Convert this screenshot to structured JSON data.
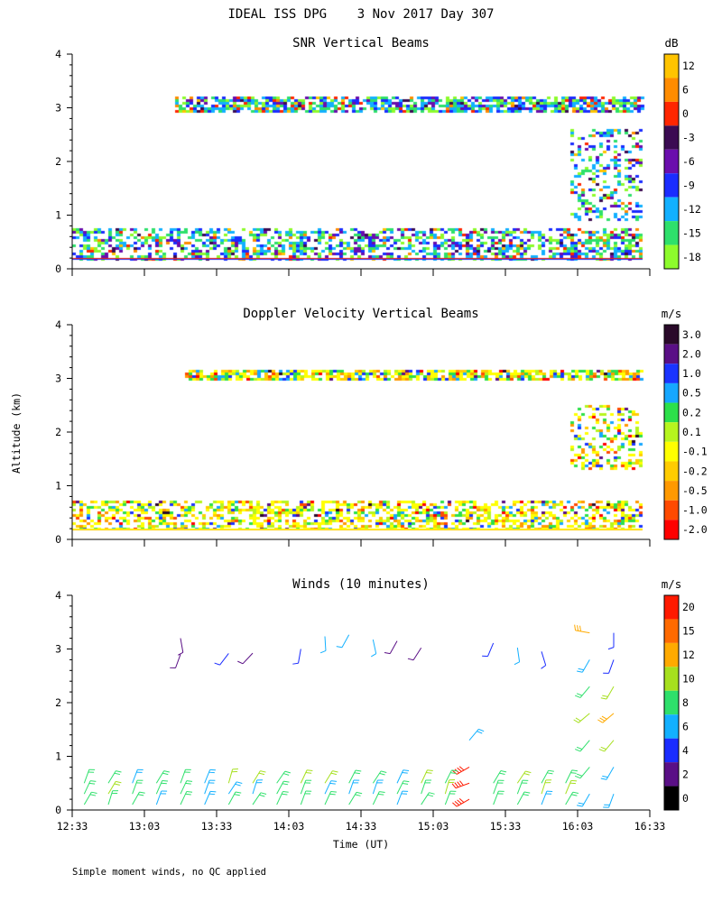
{
  "figure": {
    "title": "IDEAL ISS DPG    3 Nov 2017 Day 307",
    "shared_ylabel": "Altitude (km)",
    "xlabel": "Time (UT)",
    "footnote": "Simple moment winds, no QC applied"
  },
  "time_axis": {
    "range_min": [
      753,
      993
    ],
    "tick_minutes": [
      753,
      783,
      813,
      843,
      873,
      903,
      933,
      963,
      993
    ],
    "tick_labels": [
      "12:33",
      "13:03",
      "13:33",
      "14:03",
      "14:33",
      "15:03",
      "15:33",
      "16:03",
      "16:33"
    ]
  },
  "chart_data": [
    {
      "id": "snr",
      "type": "heatmap",
      "title": "SNR Vertical Beams",
      "xlabel": "Time (UT)",
      "ylabel": "Altitude (km)",
      "xlim_min": [
        753,
        993
      ],
      "ylim": [
        0,
        4
      ],
      "yticks": [
        0,
        1,
        2,
        3,
        4
      ],
      "colorbar": {
        "unit": "dB",
        "labels": [
          "12",
          "6",
          "0",
          "-3",
          "-6",
          "-9",
          "-12",
          "-15",
          "-18"
        ],
        "colors": [
          "#ffc400",
          "#ff8c00",
          "#ff2600",
          "#3b0b52",
          "#6a0dad",
          "#1a2cff",
          "#12b0ff",
          "#2ee06b",
          "#8dfb2c"
        ]
      },
      "data_regions": [
        {
          "feature": "surface layer",
          "time_min": [
            753,
            990
          ],
          "alt_km": [
            0.18,
            0.75
          ],
          "level": "-15 to 12"
        },
        {
          "feature": "elevated layer",
          "time_min": [
            796,
            990
          ],
          "alt_km": [
            2.9,
            3.2
          ],
          "level": "-18 to -6"
        },
        {
          "feature": "late afternoon returns",
          "time_min": [
            960,
            990
          ],
          "alt_km": [
            0.9,
            2.6
          ],
          "level": "-15 to -9"
        }
      ]
    },
    {
      "id": "velocity",
      "type": "heatmap",
      "title": "Doppler Velocity Vertical Beams",
      "xlabel": "Time (UT)",
      "ylabel": "Altitude (km)",
      "xlim_min": [
        753,
        993
      ],
      "ylim": [
        0,
        4
      ],
      "yticks": [
        0,
        1,
        2,
        3,
        4
      ],
      "colorbar": {
        "unit": "m/s",
        "labels": [
          "3.0",
          "2.0",
          "1.0",
          "0.5",
          "0.2",
          "0.1",
          "-0.1",
          "-0.2",
          "-0.5",
          "-1.0",
          "-2.0"
        ],
        "colors": [
          "#2a0a2a",
          "#5a0f86",
          "#1a34ff",
          "#16a7ff",
          "#2ce04a",
          "#b6f51e",
          "#ffff00",
          "#ffcc00",
          "#ff9900",
          "#ff4a00",
          "#ff0000"
        ]
      },
      "data_regions": [
        {
          "feature": "surface layer",
          "time_min": [
            753,
            990
          ],
          "alt_km": [
            0.18,
            0.72
          ],
          "level": "-0.2 to 0.1"
        },
        {
          "feature": "elevated layer",
          "time_min": [
            800,
            990
          ],
          "alt_km": [
            2.95,
            3.15
          ],
          "level": "-1.0 to 0.2"
        },
        {
          "feature": "late afternoon returns",
          "time_min": [
            960,
            990
          ],
          "alt_km": [
            1.3,
            2.5
          ],
          "level": "0.2 to 1.0"
        }
      ]
    },
    {
      "id": "winds",
      "type": "wind_barbs",
      "title": "Winds (10 minutes)",
      "xlabel": "Time (UT)",
      "ylabel": "Altitude (km)",
      "xlim_min": [
        753,
        993
      ],
      "ylim": [
        0,
        4
      ],
      "yticks": [
        0,
        1,
        2,
        3,
        4
      ],
      "colorbar": {
        "unit": "m/s",
        "labels": [
          "20",
          "15",
          "12",
          "10",
          "8",
          "6",
          "4",
          "2",
          "0"
        ],
        "colors": [
          "#ff1a00",
          "#ff6a00",
          "#ffaa00",
          "#a6e01e",
          "#2ee06b",
          "#12b0ff",
          "#1a2cff",
          "#5a0f86",
          "#000000"
        ]
      },
      "profile_times_min": [
        758,
        768,
        778,
        788,
        798,
        808,
        818,
        828,
        838,
        848,
        858,
        868,
        878,
        888,
        898,
        908,
        918,
        928,
        938,
        948,
        958,
        968,
        978
      ],
      "samples": [
        {
          "t": 758,
          "alt": [
            0.1,
            0.3,
            0.5
          ],
          "speed": [
            10,
            9,
            11
          ],
          "dir_deg": [
            30,
            25,
            20
          ]
        },
        {
          "t": 798,
          "alt": [
            0.1,
            0.3,
            0.5,
            2.9,
            3.2
          ],
          "speed": [
            9,
            10,
            11,
            3,
            2
          ],
          "dir_deg": [
            25,
            25,
            20,
            200,
            170
          ]
        },
        {
          "t": 848,
          "alt": [
            0.1,
            0.3,
            0.5,
            3.0
          ],
          "speed": [
            10,
            11,
            12,
            5
          ],
          "dir_deg": [
            20,
            20,
            25,
            190
          ]
        },
        {
          "t": 918,
          "alt": [
            0.2,
            0.5,
            0.8,
            1.3
          ],
          "speed": [
            20,
            20,
            19,
            8
          ],
          "dir_deg": [
            240,
            250,
            240,
            40
          ]
        },
        {
          "t": 968,
          "alt": [
            0.3,
            0.8,
            1.3,
            1.8,
            2.3,
            2.8,
            3.3
          ],
          "speed": [
            8,
            9,
            10,
            12,
            10,
            8,
            15
          ],
          "dir_deg": [
            210,
            220,
            220,
            230,
            220,
            210,
            280
          ]
        },
        {
          "t": 978,
          "alt": [
            0.3,
            0.8,
            1.3,
            1.8,
            2.3,
            2.8,
            3.3
          ],
          "speed": [
            8,
            8,
            12,
            15,
            12,
            6,
            4
          ],
          "dir_deg": [
            200,
            210,
            220,
            230,
            210,
            200,
            180
          ]
        }
      ]
    }
  ]
}
